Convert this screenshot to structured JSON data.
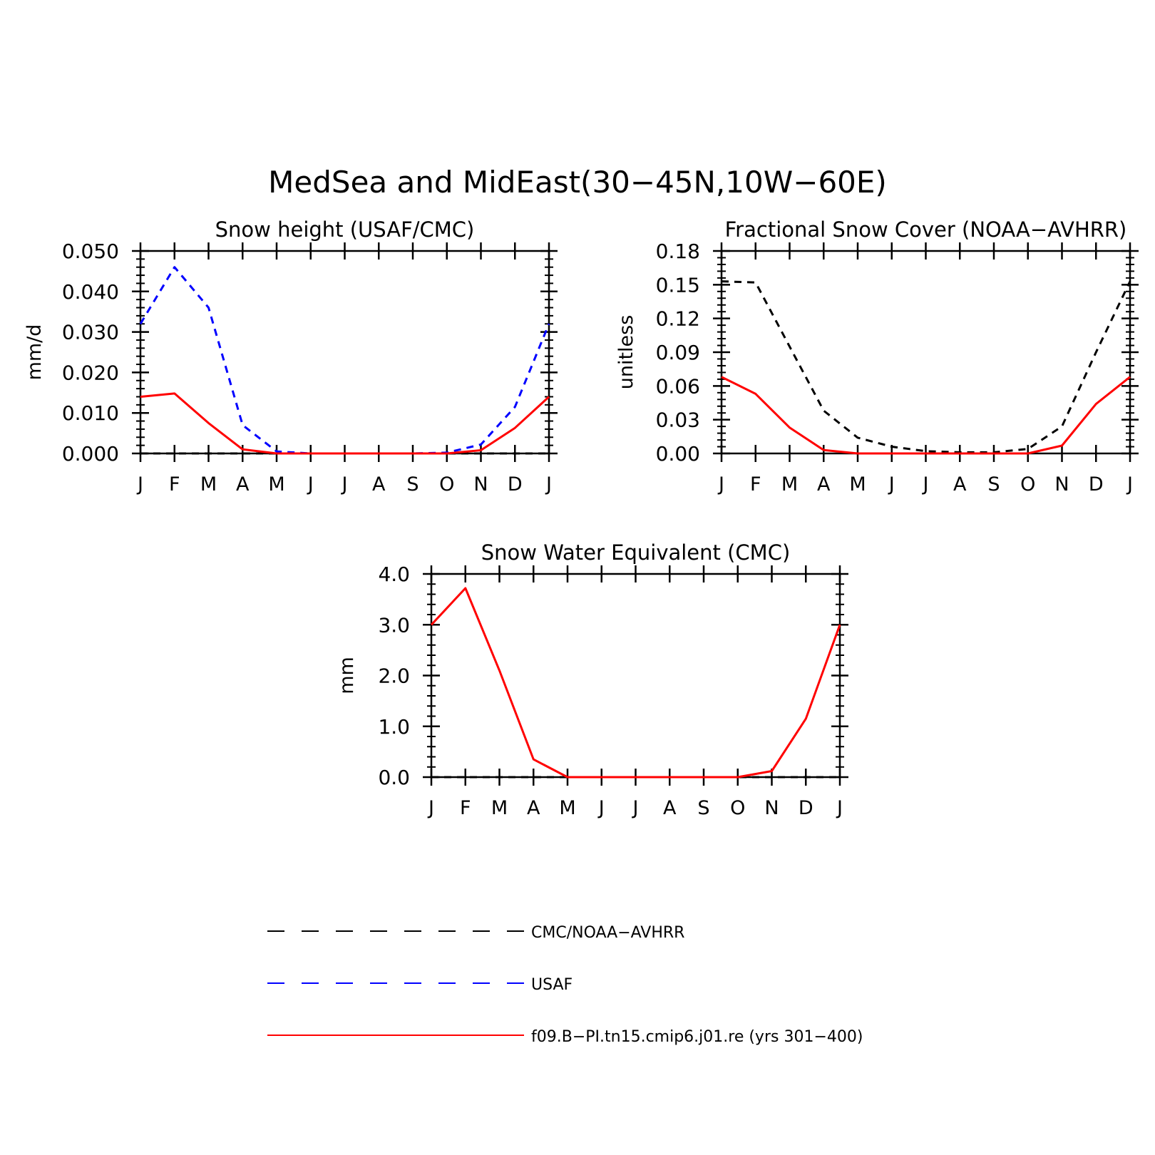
{
  "figure": {
    "title": "MedSea and MidEast(30−45N,10W−60E)"
  },
  "colors": {
    "obs": "#000000",
    "usaf": "#0000ff",
    "model": "#ff0000"
  },
  "chart_data": [
    {
      "type": "line",
      "title": "Snow height (USAF/CMC)",
      "ylabel": "mm/d",
      "xlabel": "",
      "categories": [
        "J",
        "F",
        "M",
        "A",
        "M",
        "J",
        "J",
        "A",
        "S",
        "O",
        "N",
        "D",
        "J"
      ],
      "ylim": [
        0,
        0.05
      ],
      "yticks": [
        "0.000",
        "0.010",
        "0.020",
        "0.030",
        "0.040",
        "0.050"
      ],
      "series": [
        {
          "name": "CMC/NOAA−AVHRR",
          "values": [
            0,
            0,
            0,
            0,
            0,
            0,
            0,
            0,
            0,
            0,
            0,
            0,
            0
          ]
        },
        {
          "name": "USAF",
          "values": [
            0.032,
            0.046,
            0.036,
            0.007,
            0.0005,
            0,
            0,
            0,
            0,
            0.0002,
            0.0022,
            0.0115,
            0.032
          ]
        },
        {
          "name": "f09.B−PI.tn15.cmip6.j01.re (yrs 301−400)",
          "values": [
            0.014,
            0.0148,
            0.0075,
            0.001,
            0,
            0,
            0,
            0,
            0,
            0,
            0.0008,
            0.0063,
            0.014
          ]
        }
      ]
    },
    {
      "type": "line",
      "title": "Fractional Snow Cover (NOAA−AVHRR)",
      "ylabel": "unitless",
      "xlabel": "",
      "categories": [
        "J",
        "F",
        "M",
        "A",
        "M",
        "J",
        "J",
        "A",
        "S",
        "O",
        "N",
        "D",
        "J"
      ],
      "ylim": [
        0,
        0.18
      ],
      "yticks": [
        "0.00",
        "0.03",
        "0.06",
        "0.09",
        "0.12",
        "0.15",
        "0.18"
      ],
      "series": [
        {
          "name": "CMC/NOAA−AVHRR",
          "values": [
            0.153,
            0.152,
            0.095,
            0.038,
            0.014,
            0.006,
            0.002,
            0.001,
            0.001,
            0.004,
            0.024,
            0.09,
            0.153
          ]
        },
        {
          "name": "f09.B−PI.tn15.cmip6.j01.re (yrs 301−400)",
          "values": [
            0.068,
            0.053,
            0.023,
            0.003,
            0,
            0,
            0,
            0,
            0,
            0,
            0.007,
            0.044,
            0.068
          ]
        }
      ]
    },
    {
      "type": "line",
      "title": "Snow Water Equivalent (CMC)",
      "ylabel": "mm",
      "xlabel": "",
      "categories": [
        "J",
        "F",
        "M",
        "A",
        "M",
        "J",
        "J",
        "A",
        "S",
        "O",
        "N",
        "D",
        "J"
      ],
      "ylim": [
        0,
        4.0
      ],
      "yticks": [
        "0.0",
        "1.0",
        "2.0",
        "3.0",
        "4.0"
      ],
      "series": [
        {
          "name": "CMC/NOAA−AVHRR",
          "values": [
            0,
            0,
            0,
            0,
            0,
            0,
            0,
            0,
            0,
            0,
            0,
            0,
            0
          ]
        },
        {
          "name": "f09.B−PI.tn15.cmip6.j01.re (yrs 301−400)",
          "values": [
            3.0,
            3.72,
            2.1,
            0.35,
            0,
            0,
            0,
            0,
            0,
            0,
            0.12,
            1.15,
            3.0
          ]
        }
      ]
    }
  ],
  "legend": {
    "items": [
      {
        "label": "CMC/NOAA−AVHRR",
        "color": "#000000",
        "style": "dashed"
      },
      {
        "label": "USAF",
        "color": "#0000ff",
        "style": "dashed"
      },
      {
        "label": "f09.B−PI.tn15.cmip6.j01.re (yrs 301−400)",
        "color": "#ff0000",
        "style": "solid"
      }
    ]
  }
}
